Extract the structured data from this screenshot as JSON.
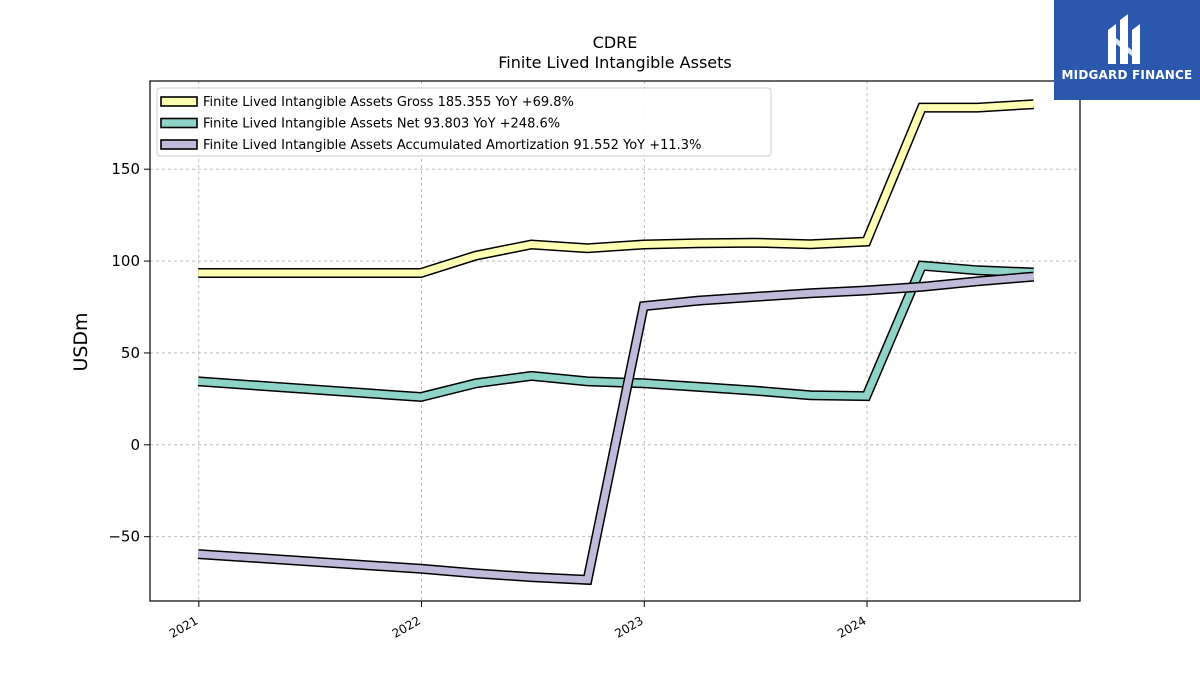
{
  "chart_data": {
    "type": "line",
    "title": "CDRE",
    "subtitle": "Finite Lived Intangible Assets",
    "ylabel": "USDm",
    "xlabel": "",
    "ylim": [
      -85,
      198
    ],
    "xlim": [
      "2020-10-13",
      "2024-12-15"
    ],
    "yticks": [
      -50,
      0,
      50,
      100,
      150
    ],
    "xticks": [
      {
        "date": "2021-01-01",
        "label": "2021"
      },
      {
        "date": "2022-01-01",
        "label": "2022"
      },
      {
        "date": "2023-01-01",
        "label": "2023"
      },
      {
        "date": "2024-01-01",
        "label": "2024"
      }
    ],
    "grid": true,
    "legend_position": "top-left",
    "series": [
      {
        "name": "Finite Lived Intangible Assets Gross  185.355 YoY +69.8%",
        "color": "#ffffb3",
        "points": [
          {
            "x": "2020-12-31",
            "y": 93.5
          },
          {
            "x": "2021-12-31",
            "y": 93.5
          },
          {
            "x": "2022-03-31",
            "y": 103.0
          },
          {
            "x": "2022-06-30",
            "y": 109.0
          },
          {
            "x": "2022-09-30",
            "y": 107.0
          },
          {
            "x": "2022-12-31",
            "y": 109.0
          },
          {
            "x": "2023-03-31",
            "y": 109.7
          },
          {
            "x": "2023-06-30",
            "y": 110.0
          },
          {
            "x": "2023-09-30",
            "y": 109.2
          },
          {
            "x": "2023-12-31",
            "y": 110.6
          },
          {
            "x": "2024-03-31",
            "y": 183.5
          },
          {
            "x": "2024-06-30",
            "y": 183.5
          },
          {
            "x": "2024-09-30",
            "y": 185.355
          }
        ]
      },
      {
        "name": "Finite Lived Intangible Assets Net  93.803 YoY +248.6%",
        "color": "#8dd3c7",
        "points": [
          {
            "x": "2020-12-31",
            "y": 34.5
          },
          {
            "x": "2021-12-31",
            "y": 26.0
          },
          {
            "x": "2022-03-31",
            "y": 33.5
          },
          {
            "x": "2022-06-30",
            "y": 37.5
          },
          {
            "x": "2022-09-30",
            "y": 34.5
          },
          {
            "x": "2022-12-31",
            "y": 33.5
          },
          {
            "x": "2023-03-31",
            "y": 31.5
          },
          {
            "x": "2023-06-30",
            "y": 29.5
          },
          {
            "x": "2023-09-30",
            "y": 27.0
          },
          {
            "x": "2023-12-31",
            "y": 26.5
          },
          {
            "x": "2024-03-31",
            "y": 97.5
          },
          {
            "x": "2024-06-30",
            "y": 95.0
          },
          {
            "x": "2024-09-30",
            "y": 93.803
          }
        ]
      },
      {
        "name": "Finite Lived Intangible Assets Accumulated Amortization  91.552 YoY +11.3%",
        "color": "#bebada",
        "points": [
          {
            "x": "2020-12-31",
            "y": -59.5
          },
          {
            "x": "2021-12-31",
            "y": -67.5
          },
          {
            "x": "2022-03-31",
            "y": -70.0
          },
          {
            "x": "2022-06-30",
            "y": -72.0
          },
          {
            "x": "2022-09-30",
            "y": -73.5
          },
          {
            "x": "2022-12-31",
            "y": 75.5
          },
          {
            "x": "2023-03-31",
            "y": 78.5
          },
          {
            "x": "2023-06-30",
            "y": 80.5
          },
          {
            "x": "2023-09-30",
            "y": 82.5
          },
          {
            "x": "2023-12-31",
            "y": 84.0
          },
          {
            "x": "2024-03-31",
            "y": 86.0
          },
          {
            "x": "2024-06-30",
            "y": 89.0
          },
          {
            "x": "2024-09-30",
            "y": 91.552
          }
        ]
      }
    ]
  },
  "logo": {
    "name": "MIDGARD FINANCE",
    "icon": "midgard-logo-icon"
  }
}
